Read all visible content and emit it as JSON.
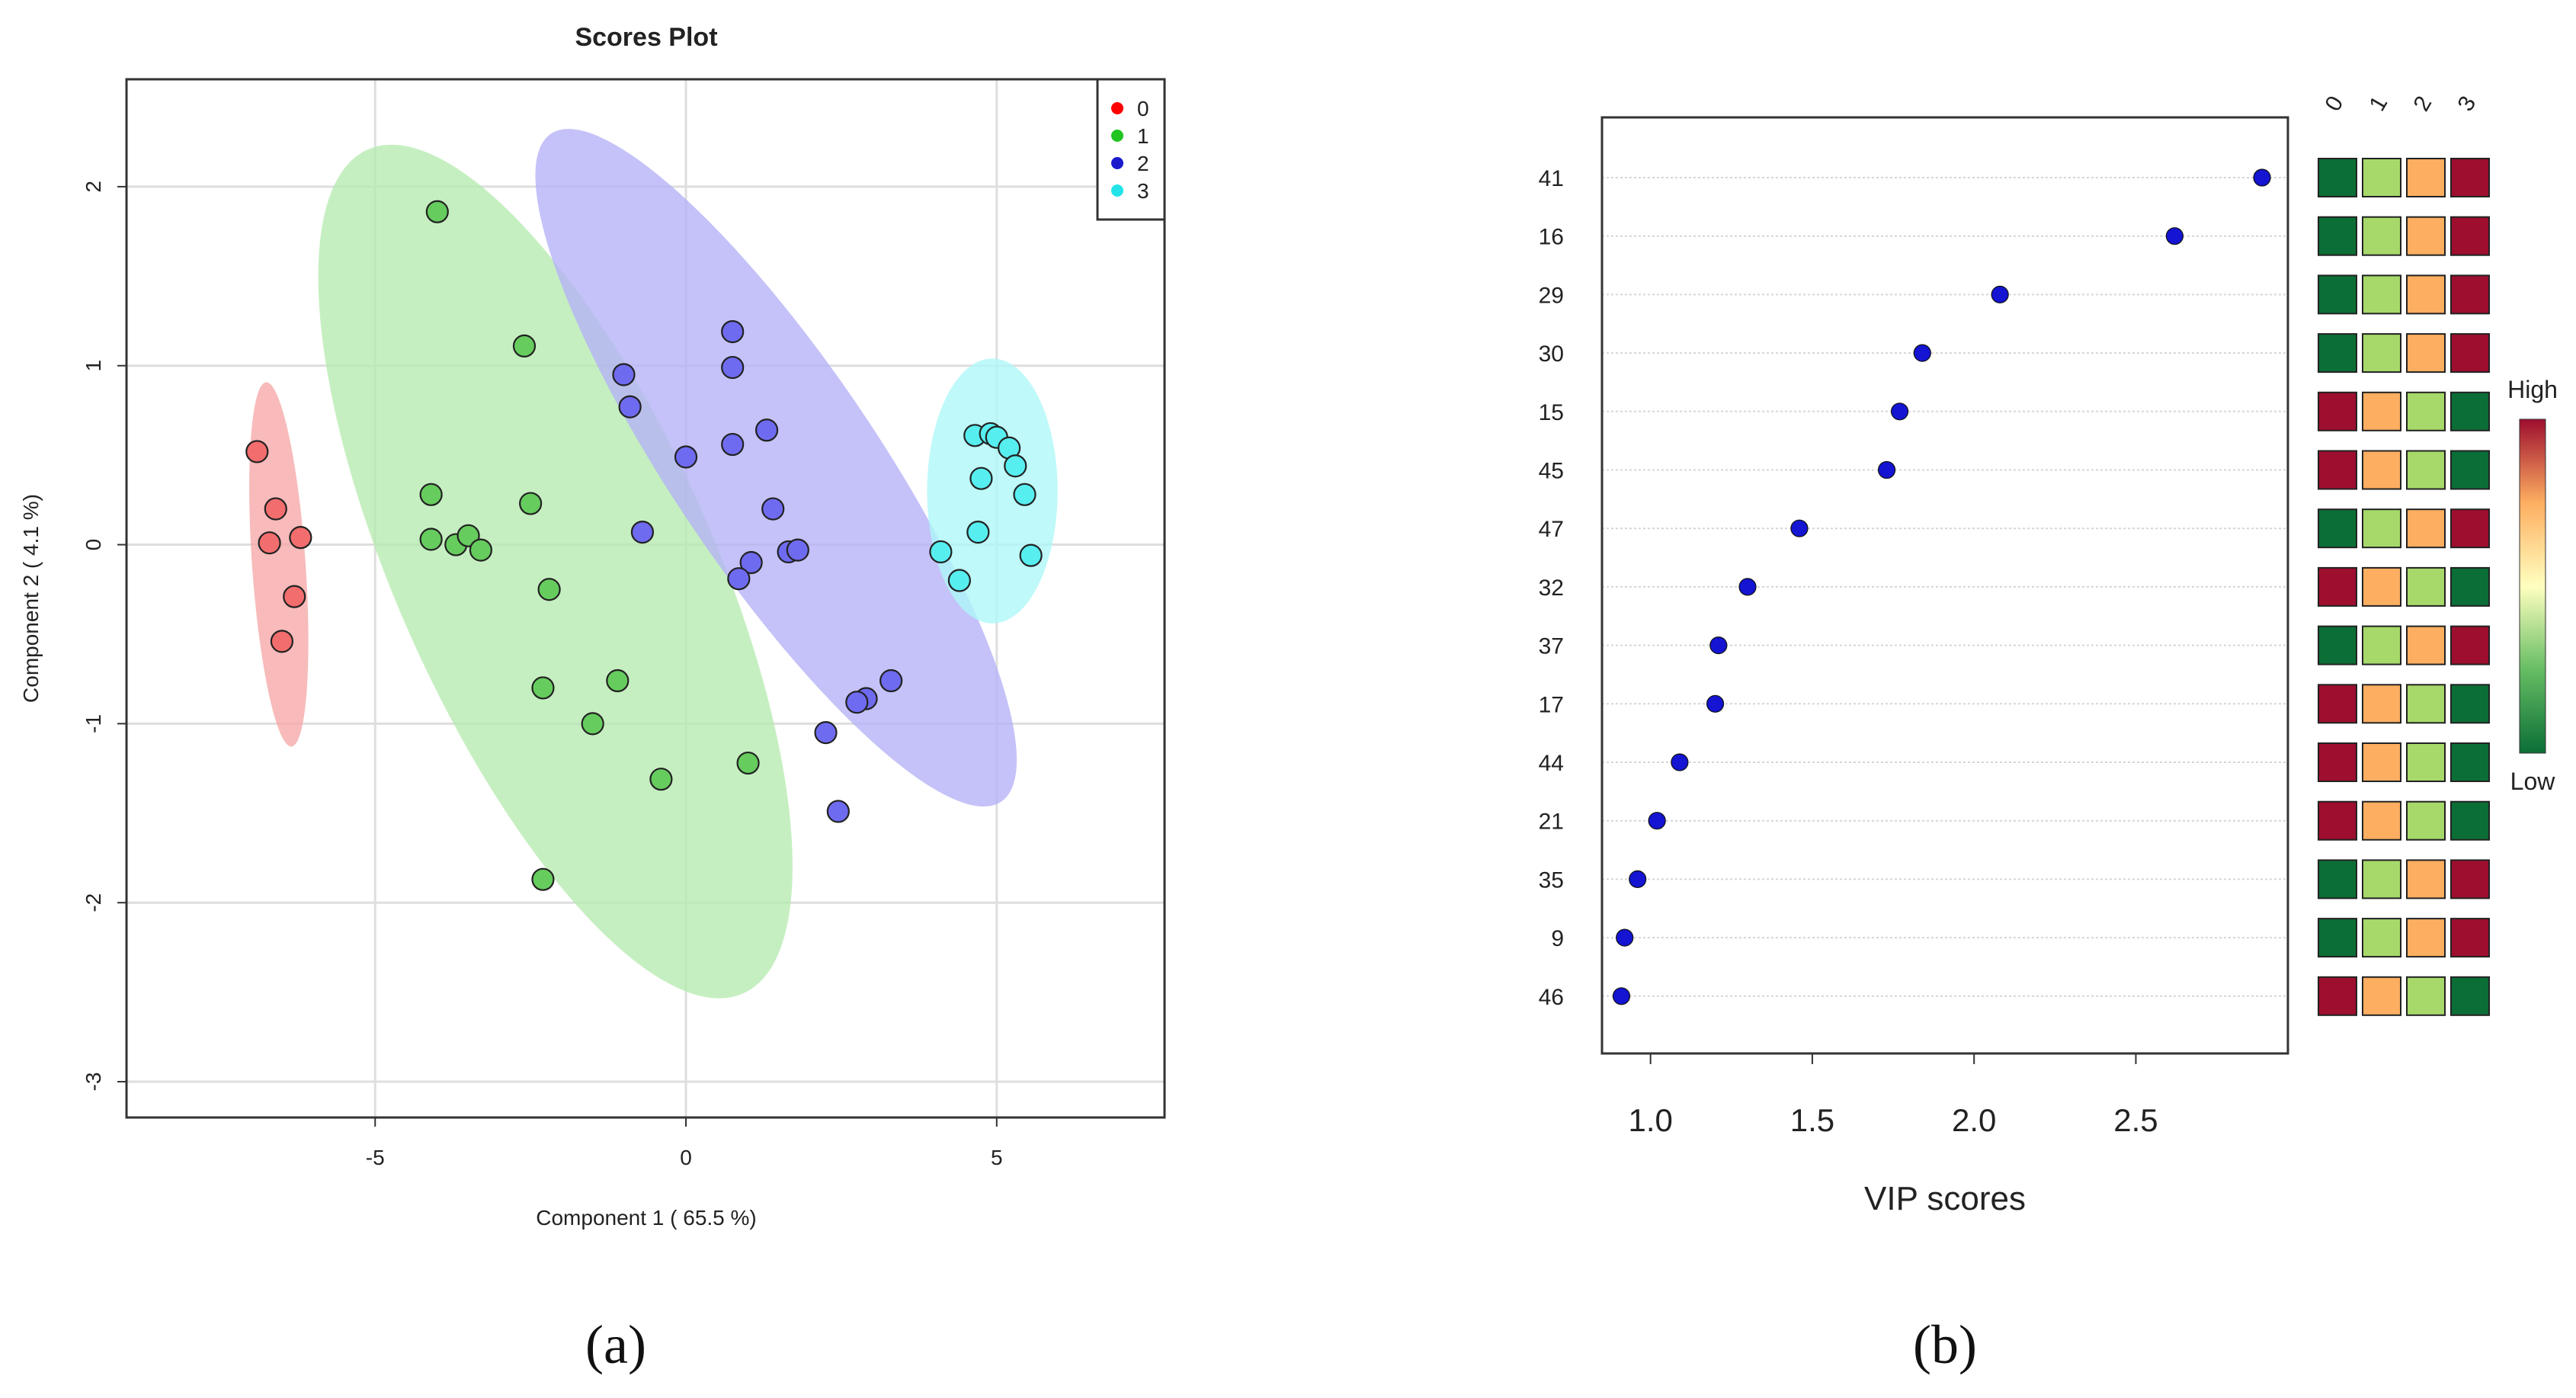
{
  "colors": {
    "group0": "#f26d6d",
    "group1": "#66cc5e",
    "group2": "#6f6bf0",
    "group3": "#57eef0",
    "ellipse0": "#f6a7a7",
    "ellipse1": "#b6ebb0",
    "ellipse2": "#b3b1f6",
    "ellipse3": "#adf7f7",
    "legend0": "#ff0000",
    "legend1": "#22c422",
    "legend2": "#1a1acc",
    "legend3": "#22e4e8",
    "vip_point": "#1414d2",
    "heat_high": "#9e0e2e",
    "heat_midhigh": "#fdae61",
    "heat_midlow": "#a6d96a",
    "heat_low": "#0b6e36"
  },
  "captions": {
    "a": "(a)",
    "b": "(b)"
  },
  "chart_data": [
    {
      "type": "scatter",
      "title": "Scores Plot",
      "xlabel": "Component 1 ( 65.5 %)",
      "ylabel": "Component 2 ( 4.1 %)",
      "xlim": [
        -9,
        7.7
      ],
      "ylim": [
        -3.2,
        2.6
      ],
      "xticks": [
        -5,
        0,
        5
      ],
      "yticks": [
        -3,
        -2,
        -1,
        0,
        1,
        2
      ],
      "xtick_labels": [
        "-5",
        "0",
        "5"
      ],
      "ytick_labels": [
        "-3",
        "-2",
        "-1",
        "0",
        "1",
        "2"
      ],
      "legend": {
        "position": "top-right",
        "labels": [
          "0",
          "1",
          "2",
          "3"
        ]
      },
      "ellipses": [
        {
          "group": "0",
          "cx": -6.55,
          "cy": -0.11,
          "rx": 0.43,
          "ry": 1.02,
          "angle": 4
        },
        {
          "group": "1",
          "cx": -2.1,
          "cy": -0.15,
          "rx": 2.55,
          "ry": 2.58,
          "angle": 24
        },
        {
          "group": "2",
          "cx": 1.45,
          "cy": 0.43,
          "rx": 1.65,
          "ry": 2.25,
          "angle": 34
        },
        {
          "group": "3",
          "cx": 4.93,
          "cy": 0.3,
          "rx": 1.05,
          "ry": 0.74,
          "angle": 0
        }
      ],
      "series": [
        {
          "name": "0",
          "x": [
            -6.9,
            -6.6,
            -6.7,
            -6.2,
            -6.3,
            -6.5
          ],
          "y": [
            0.52,
            0.2,
            0.01,
            0.04,
            -0.29,
            -0.54
          ]
        },
        {
          "name": "1",
          "x": [
            -4.0,
            -2.6,
            -4.1,
            -2.5,
            -4.1,
            -3.7,
            -3.5,
            -3.3,
            -2.2,
            -1.1,
            -2.3,
            -1.5,
            -0.4,
            1.0,
            -2.3
          ],
          "y": [
            1.86,
            1.11,
            0.28,
            0.23,
            0.03,
            0.0,
            0.05,
            -0.03,
            -0.25,
            -0.76,
            -0.8,
            -1.0,
            -1.31,
            -1.22,
            -1.87
          ]
        },
        {
          "name": "2",
          "x": [
            0.75,
            0.75,
            -1.0,
            -0.9,
            0.75,
            1.3,
            0.0,
            -0.7,
            1.4,
            1.05,
            0.85,
            1.65,
            1.8,
            3.3,
            2.9,
            2.75,
            2.25,
            2.45
          ],
          "y": [
            1.19,
            0.99,
            0.95,
            0.77,
            0.56,
            0.64,
            0.49,
            0.07,
            0.2,
            -0.1,
            -0.19,
            -0.04,
            -0.03,
            -0.76,
            -0.86,
            -0.88,
            -1.05,
            -1.49
          ]
        },
        {
          "name": "3",
          "x": [
            4.65,
            4.9,
            5.0,
            5.2,
            5.3,
            4.75,
            5.45,
            4.7,
            4.1,
            4.4,
            5.55
          ],
          "y": [
            0.61,
            0.62,
            0.6,
            0.54,
            0.44,
            0.37,
            0.28,
            0.07,
            -0.04,
            -0.2,
            -0.06
          ]
        }
      ]
    },
    {
      "type": "scatter",
      "subtype": "vip-dotplot-with-heatmap",
      "xlabel": "VIP scores",
      "xlim": [
        0.85,
        2.97
      ],
      "xticks": [
        1.0,
        1.5,
        2.0,
        2.5
      ],
      "xtick_labels": [
        "1.0",
        "1.5",
        "2.0",
        "2.5"
      ],
      "features": [
        "41",
        "16",
        "29",
        "30",
        "15",
        "45",
        "47",
        "32",
        "37",
        "17",
        "44",
        "21",
        "35",
        "9",
        "46"
      ],
      "values": [
        2.89,
        2.62,
        2.08,
        1.84,
        1.77,
        1.73,
        1.46,
        1.3,
        1.21,
        1.2,
        1.09,
        1.02,
        0.96,
        0.92,
        0.91
      ],
      "heatmap_columns": [
        "0",
        "1",
        "2",
        "3"
      ],
      "heatmap_levels": [
        [
          1,
          2,
          3,
          4
        ],
        [
          1,
          2,
          3,
          4
        ],
        [
          1,
          2,
          3,
          4
        ],
        [
          1,
          2,
          3,
          4
        ],
        [
          4,
          3,
          2,
          1
        ],
        [
          4,
          3,
          2,
          1
        ],
        [
          1,
          2,
          3,
          4
        ],
        [
          4,
          3,
          2,
          1
        ],
        [
          1,
          2,
          3,
          4
        ],
        [
          4,
          3,
          2,
          1
        ],
        [
          4,
          3,
          2,
          1
        ],
        [
          4,
          3,
          2,
          1
        ],
        [
          1,
          2,
          3,
          4
        ],
        [
          1,
          2,
          3,
          4
        ],
        [
          4,
          3,
          2,
          1
        ]
      ],
      "colorbar": {
        "high_label": "High",
        "low_label": "Low"
      }
    }
  ]
}
